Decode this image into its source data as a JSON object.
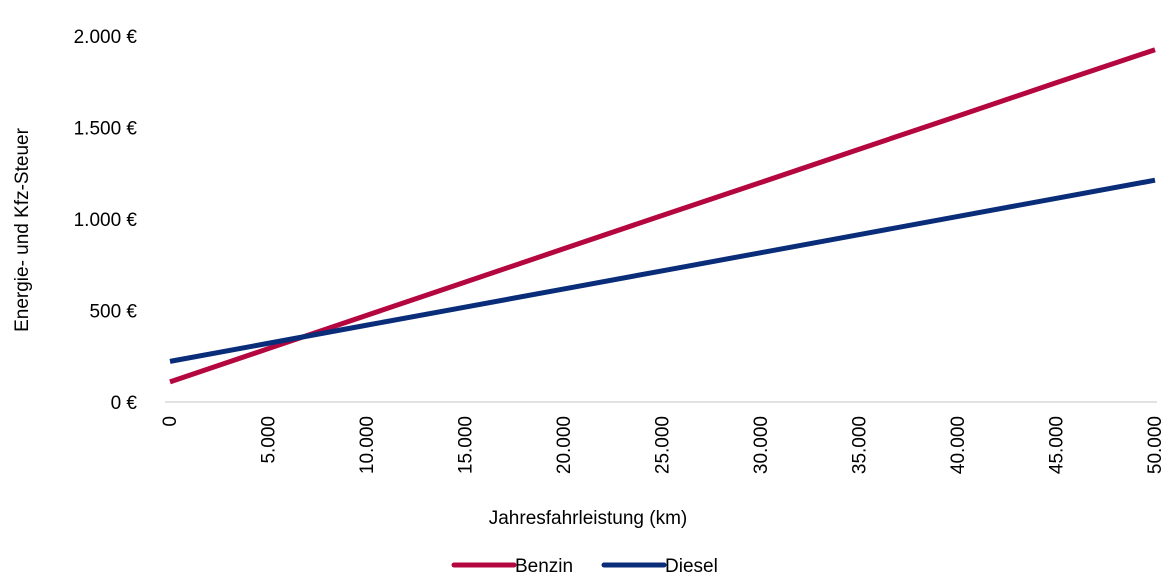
{
  "chart_data": {
    "type": "line",
    "title": "",
    "xlabel": "Jahresfahrleistung (km)",
    "ylabel": "Energie- und Kfz-Steuer",
    "x": [
      0,
      5000,
      10000,
      15000,
      20000,
      25000,
      30000,
      35000,
      40000,
      45000,
      50000
    ],
    "x_tick_labels": [
      "0",
      "5.000",
      "10.000",
      "15.000",
      "20.000",
      "25.000",
      "30.000",
      "35.000",
      "40.000",
      "45.000",
      "50.000"
    ],
    "y_tick_values": [
      0,
      500,
      1000,
      1500,
      2000
    ],
    "y_tick_labels": [
      "0 €",
      "500 €",
      "1.000 €",
      "1.500 €",
      "2.000 €"
    ],
    "xlim": [
      0,
      50000
    ],
    "ylim": [
      0,
      2000
    ],
    "grid": false,
    "legend_position": "bottom",
    "series": [
      {
        "name": "Benzin",
        "color": "#b5073f",
        "values": [
          110,
          292,
          474,
          656,
          838,
          1020,
          1200,
          1382,
          1563,
          1745,
          1925
        ]
      },
      {
        "name": "Diesel",
        "color": "#0a2d7a",
        "values": [
          222,
          321,
          420,
          519,
          618,
          717,
          816,
          915,
          1014,
          1113,
          1212
        ]
      }
    ]
  }
}
